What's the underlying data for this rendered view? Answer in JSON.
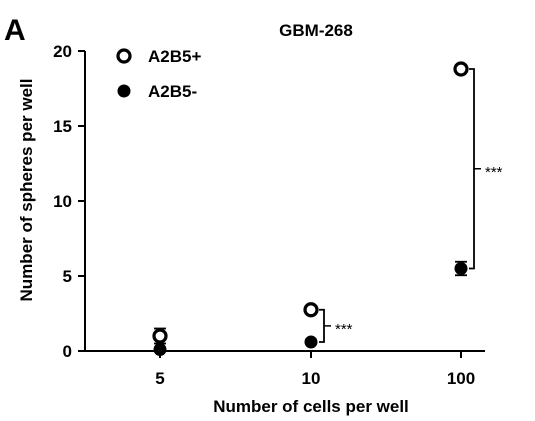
{
  "panel_label": "A",
  "chart_data": {
    "type": "scatter",
    "title": "GBM-268",
    "xlabel": "Number of cells per well",
    "ylabel": "Number of spheres per well",
    "categories": [
      "5",
      "10",
      "100"
    ],
    "ylim": [
      0,
      20
    ],
    "yticks": [
      0,
      5,
      10,
      15,
      20
    ],
    "grid": false,
    "legend_position": "top-left",
    "series": [
      {
        "name": "A2B5+",
        "marker": "open-circle",
        "values": [
          1.0,
          2.75,
          18.8
        ],
        "error": [
          0.5,
          0.15,
          0.25
        ]
      },
      {
        "name": "A2B5-",
        "marker": "filled-circle",
        "values": [
          0.1,
          0.6,
          5.5
        ],
        "error": [
          0.05,
          0.05,
          0.45
        ]
      }
    ],
    "annotations": [
      {
        "category": "10",
        "text": "***"
      },
      {
        "category": "100",
        "text": "***"
      }
    ]
  }
}
